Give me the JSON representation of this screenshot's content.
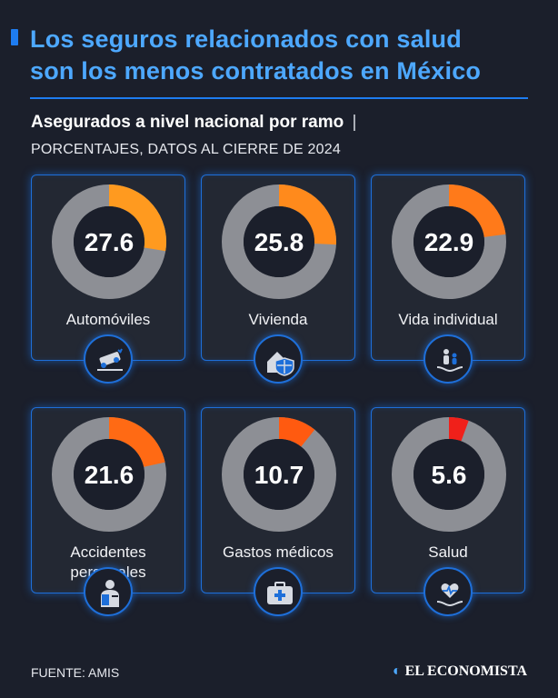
{
  "header": {
    "title_line1": "Los seguros relacionados con salud",
    "title_line2": "son los menos contratados en México",
    "subtitle": "Asegurados a nivel nacional por ramo",
    "subtitle_sep": "|",
    "subtitle2": "PORCENTAJES, DATOS AL CIERRE DE 2024"
  },
  "chart_data": {
    "type": "pie",
    "subtype": "donut-grid",
    "title": "Asegurados a nivel nacional por ramo",
    "subtitle": "PORCENTAJES, DATOS AL CIERRE DE 2024",
    "unit": "%",
    "categories": [
      "Automóviles",
      "Vivienda",
      "Vida individual",
      "Accidentes personales",
      "Gastos médicos",
      "Salud"
    ],
    "values": [
      27.6,
      25.8,
      22.9,
      21.6,
      10.7,
      5.6
    ],
    "items": [
      {
        "label": "Automóviles",
        "label_lines": [
          "Automóviles"
        ],
        "value": 27.6,
        "value_text": "27.6",
        "color": "#ff9a1f",
        "icon": "car-crash-icon"
      },
      {
        "label": "Vivienda",
        "label_lines": [
          "Vivienda"
        ],
        "value": 25.8,
        "value_text": "25.8",
        "color": "#ff8a1c",
        "icon": "house-shield-icon"
      },
      {
        "label": "Vida individual",
        "label_lines": [
          "Vida individual"
        ],
        "value": 22.9,
        "value_text": "22.9",
        "color": "#ff7a1a",
        "icon": "family-hand-icon"
      },
      {
        "label": "Accidentes personales",
        "label_lines": [
          "Accidentes",
          "personales"
        ],
        "value": 21.6,
        "value_text": "21.6",
        "color": "#ff6a14",
        "icon": "injured-person-icon"
      },
      {
        "label": "Gastos médicos",
        "label_lines": [
          "Gastos médicos"
        ],
        "value": 10.7,
        "value_text": "10.7",
        "color": "#ff5a10",
        "icon": "medical-kit-icon"
      },
      {
        "label": "Salud",
        "label_lines": [
          "Salud"
        ],
        "value": 5.6,
        "value_text": "5.6",
        "color": "#f0201a",
        "icon": "heart-hand-icon"
      }
    ],
    "track_color": "#8d8f95"
  },
  "footer": {
    "source": "FUENTE: AMIS",
    "brand": "EL ECONOMISTA"
  }
}
